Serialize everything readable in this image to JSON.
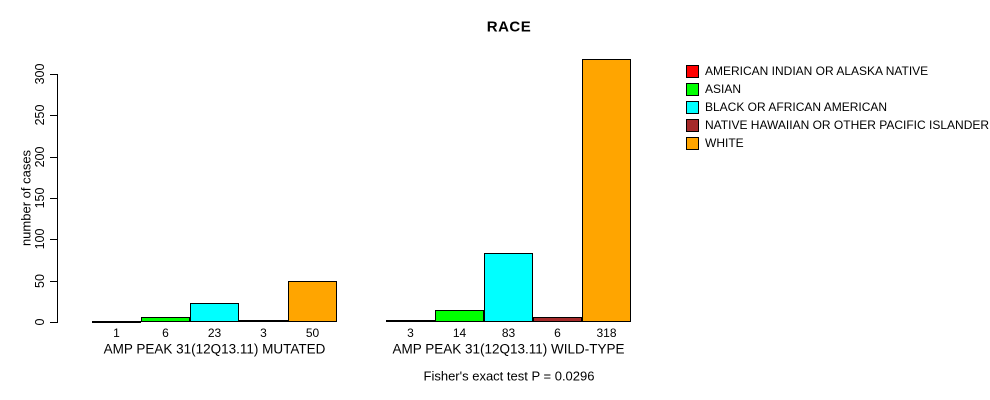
{
  "chart_data": {
    "type": "bar",
    "title": "RACE",
    "ylabel": "number of cases",
    "annotation": "Fisher's exact test P = 0.0296",
    "categories": [
      "AMP PEAK 31(12Q13.11) MUTATED",
      "AMP PEAK 31(12Q13.11) WILD-TYPE"
    ],
    "series": [
      {
        "name": "AMERICAN INDIAN OR ALASKA NATIVE",
        "color": "#ff0000",
        "values": [
          1,
          3
        ]
      },
      {
        "name": "ASIAN",
        "color": "#00ff00",
        "values": [
          6,
          14
        ]
      },
      {
        "name": "BLACK OR AFRICAN AMERICAN",
        "color": "#00ffff",
        "values": [
          23,
          83
        ]
      },
      {
        "name": "NATIVE HAWAIIAN OR OTHER PACIFIC ISLANDER",
        "color": "#a52a2a",
        "values": [
          3,
          6
        ]
      },
      {
        "name": "WHITE",
        "color": "#ffa500",
        "values": [
          50,
          318
        ]
      }
    ],
    "yticks": [
      0,
      50,
      100,
      150,
      200,
      250,
      300
    ],
    "ylim": [
      0,
      310
    ],
    "grid": false,
    "legend_position": "right",
    "bar_outline_color": "#000000",
    "text_color": "#000000",
    "background_color": "#ffffff"
  }
}
